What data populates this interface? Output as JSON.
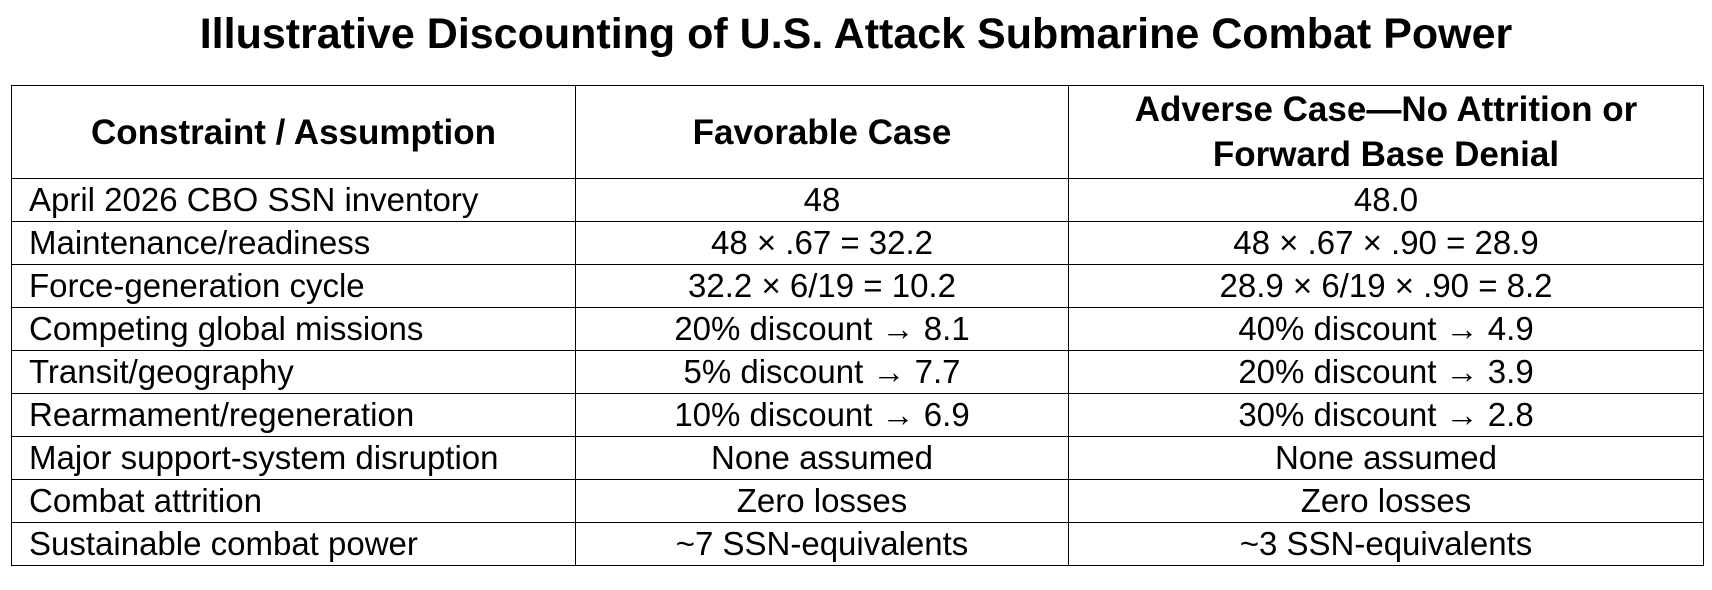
{
  "title": "Illustrative Discounting of U.S. Attack Submarine Combat Power",
  "table": {
    "header": [
      "Constraint / Assumption",
      "Favorable Case",
      "Adverse Case—No Attrition or Forward Base Denial"
    ],
    "rows": [
      [
        "April 2026 CBO SSN inventory",
        "48",
        "48.0"
      ],
      [
        "Maintenance/readiness",
        "48 × .67 = 32.2",
        "48 × .67 × .90 = 28.9"
      ],
      [
        "Force-generation cycle",
        "32.2 × 6/19 = 10.2",
        "28.9 × 6/19 × .90 = 8.2"
      ],
      [
        "Competing global missions",
        "20% discount → 8.1",
        "40% discount → 4.9"
      ],
      [
        "Transit/geography",
        "5% discount → 7.7",
        "20% discount → 3.9"
      ],
      [
        "Rearmament/regeneration",
        "10% discount → 6.9",
        "30% discount → 2.8"
      ],
      [
        "Major support-system disruption",
        "None assumed",
        "None assumed"
      ],
      [
        "Combat attrition",
        "Zero losses",
        "Zero losses"
      ],
      [
        "Sustainable combat power",
        "~7 SSN-equivalents",
        "~3 SSN-equivalents"
      ]
    ]
  }
}
